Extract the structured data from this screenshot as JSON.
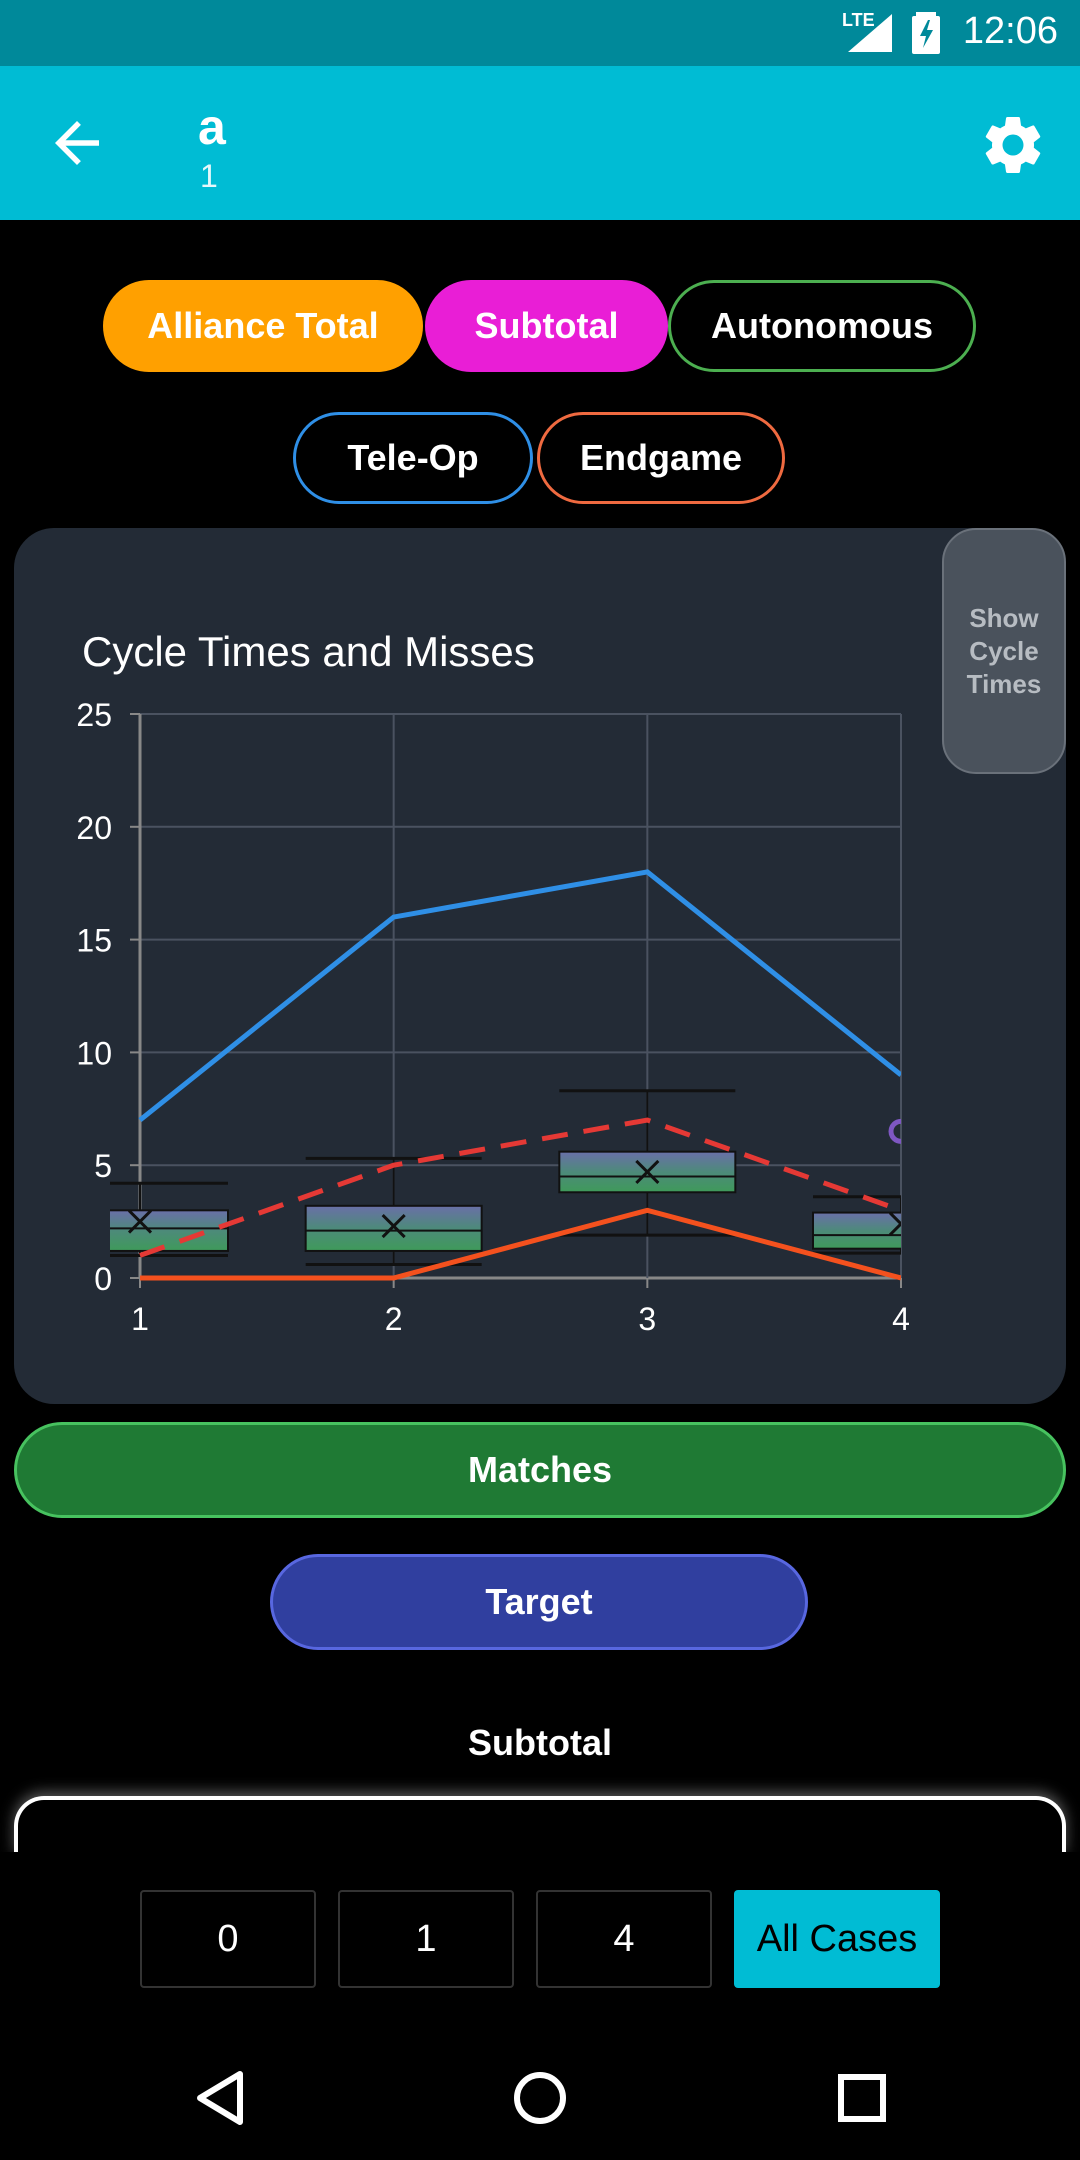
{
  "status": {
    "time": "12:06",
    "network": "LTE"
  },
  "header": {
    "title": "a",
    "subtitle": "1"
  },
  "filters": {
    "row1": [
      "Alliance Total",
      "Subtotal",
      "Autonomous"
    ],
    "row2": [
      "Tele-Op",
      "Endgame"
    ]
  },
  "chart_toggle": {
    "label": "Show Cycle Times"
  },
  "chart_data": {
    "type": "line",
    "title": "Cycle Times and Misses",
    "xlabel": "",
    "ylabel": "",
    "x": [
      1,
      2,
      3,
      4
    ],
    "xlim": [
      1,
      4
    ],
    "ylim": [
      0,
      25
    ],
    "yticks": [
      0,
      5,
      10,
      15,
      20,
      25
    ],
    "grid": true,
    "colors": {
      "blue": "#2f8fe6",
      "red_dashed": "#e53935",
      "orange": "#f4511e",
      "box": "#4e7f6e"
    },
    "series": [
      {
        "values": [
          7,
          16,
          18,
          9
        ],
        "style": "solid",
        "color": "#2f8fe6"
      },
      {
        "values": [
          1,
          5,
          7,
          3
        ],
        "style": "dashed",
        "color": "#e53935"
      },
      {
        "values": [
          0,
          0,
          3,
          0
        ],
        "style": "solid",
        "color": "#f4511e"
      }
    ],
    "boxes": [
      {
        "x": 1,
        "min": 1.0,
        "q1": 1.2,
        "median": 2.2,
        "q3": 3.0,
        "max": 4.2,
        "mean": 2.5
      },
      {
        "x": 2,
        "min": 0.6,
        "q1": 1.2,
        "median": 2.1,
        "q3": 3.2,
        "max": 5.3,
        "mean": 2.3
      },
      {
        "x": 3,
        "min": 1.9,
        "q1": 3.8,
        "median": 4.5,
        "q3": 5.6,
        "max": 8.3,
        "mean": 4.7
      },
      {
        "x": 4,
        "min": 1.1,
        "q1": 1.3,
        "median": 1.9,
        "q3": 2.9,
        "max": 3.6,
        "mean": 2.4
      }
    ],
    "outliers": [
      {
        "x": 4,
        "y": 6.5
      }
    ]
  },
  "buttons": {
    "matches": "Matches",
    "target": "Target"
  },
  "section": {
    "label": "Subtotal"
  },
  "tabs": [
    "0",
    "1",
    "4",
    "All Cases"
  ]
}
